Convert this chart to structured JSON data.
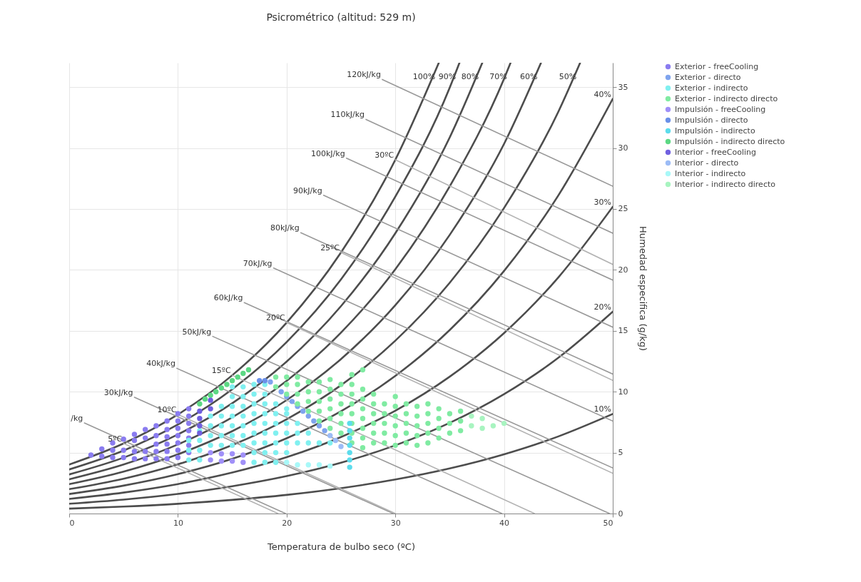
{
  "chart_data": {
    "type": "scatter",
    "title": "Psicrométrico (altitud: 529 m)",
    "xlabel": "Temperatura de bulbo seco (ºC)",
    "ylabel": "Humedad especifica (g/kg)",
    "xlim": [
      0,
      50
    ],
    "ylim": [
      0,
      37
    ],
    "xticks": [
      0,
      10,
      20,
      30,
      40,
      50
    ],
    "yticks": [
      0,
      5,
      10,
      15,
      20,
      25,
      30,
      35
    ],
    "grid": true,
    "legend": "right",
    "line_style": "solid",
    "series": [
      {
        "type": "line",
        "color": "#4d4d4d",
        "x": [
          0,
          5,
          10,
          15,
          20,
          25,
          30,
          35,
          40,
          45,
          50
        ],
        "values": [
          0.4,
          0.57,
          0.8,
          1.12,
          1.53,
          2.08,
          2.79,
          3.7,
          4.86,
          6.33,
          8.17
        ]
      },
      {
        "type": "line",
        "color": "#4d4d4d",
        "x": [
          0,
          5,
          10,
          15,
          20,
          25,
          30,
          35,
          40,
          45,
          50
        ],
        "values": [
          0.8,
          1.14,
          1.61,
          2.24,
          3.07,
          4.17,
          5.6,
          7.44,
          9.8,
          12.79,
          16.57
        ]
      },
      {
        "type": "line",
        "color": "#4d4d4d",
        "x": [
          0,
          5,
          10,
          15,
          20,
          25,
          30,
          35,
          40,
          45,
          50
        ],
        "values": [
          1.2,
          1.72,
          2.42,
          3.36,
          4.62,
          6.28,
          8.44,
          11.23,
          14.81,
          19.39,
          25.18
        ]
      },
      {
        "type": "line",
        "color": "#4d4d4d",
        "x": [
          0,
          5,
          10,
          15,
          20,
          25,
          30,
          35,
          40,
          45,
          50
        ],
        "values": [
          1.6,
          2.29,
          3.23,
          4.49,
          6.18,
          8.4,
          11.3,
          15.06,
          19.91,
          26.12,
          34.04
        ]
      },
      {
        "type": "line",
        "color": "#4d4d4d",
        "x": [
          0,
          5,
          10,
          15,
          20,
          25,
          30,
          35,
          40,
          45,
          47.0
        ],
        "values": [
          2.0,
          2.86,
          4.04,
          5.62,
          7.74,
          10.53,
          14.19,
          18.94,
          25.08,
          32.99,
          37
        ]
      },
      {
        "type": "line",
        "color": "#4d4d4d",
        "x": [
          0,
          5,
          10,
          15,
          20,
          25,
          30,
          35,
          40,
          43.4
        ],
        "values": [
          2.41,
          3.44,
          4.86,
          6.76,
          9.31,
          12.68,
          17.1,
          22.87,
          30.34,
          37
        ]
      },
      {
        "type": "line",
        "color": "#4d4d4d",
        "x": [
          0,
          5,
          10,
          15,
          20,
          25,
          30,
          35,
          40,
          40.6
        ],
        "values": [
          2.81,
          4.02,
          5.67,
          7.9,
          10.89,
          14.85,
          20.05,
          26.85,
          35.69,
          37
        ]
      },
      {
        "type": "line",
        "color": "#4d4d4d",
        "x": [
          0,
          5,
          10,
          15,
          20,
          25,
          30,
          35,
          38.0
        ],
        "values": [
          3.21,
          4.59,
          6.49,
          9.05,
          12.47,
          17.02,
          23.01,
          30.87,
          37
        ]
      },
      {
        "type": "line",
        "color": "#4d4d4d",
        "x": [
          0,
          5,
          10,
          15,
          20,
          25,
          30,
          35,
          35.9
        ],
        "values": [
          3.62,
          5.17,
          7.31,
          10.2,
          14.07,
          19.22,
          26.01,
          34.95,
          37
        ]
      },
      {
        "type": "line",
        "color": "#4d4d4d",
        "x": [
          0,
          5,
          10,
          15,
          20,
          25,
          30,
          34.0
        ],
        "values": [
          4.02,
          5.75,
          8.13,
          11.35,
          15.67,
          21.43,
          29.04,
          37
        ]
      },
      {
        "type": "line",
        "color": "#999999",
        "x": [
          28.8,
          50
        ],
        "values": [
          35.63,
          26.87
        ]
      },
      {
        "type": "line",
        "color": "#999999",
        "x": [
          27.3,
          50
        ],
        "values": [
          32.35,
          23.01
        ]
      },
      {
        "type": "line",
        "color": "#999999",
        "x": [
          25.5,
          50
        ],
        "values": [
          29.17,
          19.16
        ]
      },
      {
        "type": "line",
        "color": "#999999",
        "x": [
          23.4,
          50
        ],
        "values": [
          26.12,
          15.3
        ]
      },
      {
        "type": "line",
        "color": "#999999",
        "x": [
          21.3,
          50
        ],
        "values": [
          23.05,
          11.45
        ]
      },
      {
        "type": "line",
        "color": "#999999",
        "x": [
          18.8,
          50
        ],
        "values": [
          20.15,
          7.59
        ]
      },
      {
        "type": "line",
        "color": "#999999",
        "x": [
          16.1,
          50
        ],
        "values": [
          17.31,
          3.74
        ]
      },
      {
        "type": "line",
        "color": "#999999",
        "x": [
          13.2,
          49.7
        ],
        "values": [
          14.54,
          0
        ]
      },
      {
        "type": "line",
        "color": "#999999",
        "x": [
          9.9,
          39.8
        ],
        "values": [
          11.92,
          0
        ]
      },
      {
        "type": "line",
        "color": "#999999",
        "x": [
          6.0,
          29.8
        ],
        "values": [
          9.54,
          0
        ]
      },
      {
        "type": "line",
        "color": "#999999",
        "x": [
          1.4,
          19.9
        ],
        "values": [
          7.43,
          0
        ]
      },
      {
        "type": "line",
        "color": "#b3b3b3",
        "x": [
          5,
          19.2
        ],
        "values": [
          5.75,
          0
        ]
      },
      {
        "type": "line",
        "color": "#b3b3b3",
        "x": [
          10,
          30.0
        ],
        "values": [
          8.13,
          0
        ]
      },
      {
        "type": "line",
        "color": "#b3b3b3",
        "x": [
          15,
          42.8
        ],
        "values": [
          11.35,
          0
        ]
      },
      {
        "type": "line",
        "color": "#b3b3b3",
        "x": [
          20,
          50
        ],
        "values": [
          15.67,
          3.3
        ]
      },
      {
        "type": "line",
        "color": "#b3b3b3",
        "x": [
          25,
          50
        ],
        "values": [
          21.43,
          10.93
        ]
      },
      {
        "type": "line",
        "color": "#b3b3b3",
        "x": [
          30,
          50
        ],
        "values": [
          29.04,
          20.45
        ]
      },
      {
        "name": "Exterior - freeCooling",
        "color": "#8a7cf0",
        "x": [
          2,
          3,
          3,
          4,
          4,
          4,
          5,
          5,
          5,
          6,
          6,
          6,
          6,
          7,
          7,
          7,
          7,
          8,
          8,
          8,
          8,
          8,
          9,
          9,
          9,
          9,
          9,
          9,
          10,
          10,
          10,
          10,
          10,
          10,
          10,
          11,
          11,
          11,
          11,
          11,
          11,
          11
        ],
        "values": [
          4.8,
          4.7,
          5.3,
          4.6,
          5.2,
          5.8,
          4.6,
          5.2,
          6.1,
          4.5,
          5.1,
          6.0,
          6.5,
          4.5,
          5.1,
          6.2,
          6.9,
          4.5,
          5.1,
          5.7,
          6.4,
          7.2,
          4.5,
          5.1,
          5.7,
          6.3,
          6.9,
          7.6,
          4.6,
          5.2,
          5.8,
          6.4,
          7.0,
          7.6,
          8.2,
          5.0,
          5.6,
          6.2,
          6.8,
          7.4,
          8.0,
          8.6
        ]
      },
      {
        "name": "Exterior - directo",
        "color": "#7fa4ee",
        "x": [
          18.5,
          19.5,
          20.5,
          21.5,
          22.5,
          23.5,
          20,
          21,
          22,
          23
        ],
        "values": [
          10.8,
          10.0,
          9.2,
          8.4,
          7.6,
          6.8,
          9.6,
          8.8,
          8.0,
          7.2
        ]
      },
      {
        "name": "Exterior - indirecto",
        "color": "#80f0f0",
        "x": [
          11,
          11,
          11,
          12,
          12,
          12,
          12,
          13,
          13,
          13,
          13,
          14,
          14,
          14,
          14,
          14,
          15,
          15,
          15,
          15,
          15,
          15,
          15,
          16,
          16,
          16,
          16,
          16,
          16,
          16,
          17,
          17,
          17,
          17,
          17,
          17,
          17,
          17,
          17,
          18,
          18,
          18,
          18,
          18,
          18,
          18,
          18,
          18,
          19,
          19,
          19,
          19,
          19,
          19,
          19,
          20,
          20,
          20,
          20,
          20,
          20,
          21,
          21,
          21,
          22,
          22,
          23,
          24
        ],
        "values": [
          4.4,
          5.2,
          6.0,
          4.4,
          5.2,
          6.0,
          6.8,
          5.6,
          6.4,
          7.2,
          8.0,
          5.6,
          6.4,
          7.2,
          8.0,
          8.8,
          5.6,
          6.4,
          7.2,
          8.0,
          8.8,
          9.6,
          10.4,
          5.6,
          6.4,
          7.2,
          8.0,
          8.8,
          9.6,
          10.4,
          4.2,
          5.0,
          5.8,
          6.6,
          7.4,
          8.2,
          9.0,
          9.8,
          10.6,
          4.2,
          5.0,
          5.8,
          6.6,
          7.4,
          8.2,
          9.0,
          9.8,
          10.6,
          4.2,
          5.0,
          5.8,
          6.6,
          7.4,
          8.2,
          9.0,
          5.0,
          5.8,
          6.6,
          7.4,
          8.2,
          8.6,
          5.8,
          6.6,
          7.4,
          5.8,
          6.6,
          5.8,
          5.8
        ]
      },
      {
        "name": "Exterior - indirecto directo",
        "color": "#80eba2",
        "x": [
          19,
          19,
          20,
          20,
          20,
          21,
          21,
          21,
          21,
          22,
          22,
          22,
          22,
          23,
          23,
          23,
          23,
          23,
          24,
          24,
          24,
          24,
          24,
          24,
          25,
          25,
          25,
          25,
          25,
          25,
          26,
          26,
          26,
          26,
          26,
          26,
          26,
          26,
          27,
          27,
          27,
          27,
          27,
          27,
          27,
          27,
          28,
          28,
          28,
          28,
          28,
          28,
          29,
          29,
          29,
          29,
          29,
          30,
          30,
          30,
          30,
          30,
          30,
          31,
          31,
          31,
          31,
          31,
          32,
          32,
          32,
          32,
          32,
          33,
          33,
          33,
          33,
          33,
          34,
          34,
          34,
          34,
          35,
          35,
          35,
          36,
          36,
          36
        ],
        "values": [
          10.4,
          11.2,
          9.8,
          10.6,
          11.2,
          9.0,
          9.8,
          10.6,
          11.2,
          8.4,
          9.2,
          10.0,
          10.8,
          7.6,
          8.4,
          9.2,
          10.0,
          10.8,
          7.0,
          7.8,
          8.6,
          9.4,
          10.2,
          11.0,
          6.6,
          7.4,
          8.2,
          9.0,
          9.8,
          10.6,
          5.8,
          6.6,
          7.4,
          8.2,
          9.0,
          9.8,
          10.6,
          11.4,
          5.4,
          6.2,
          7.0,
          7.8,
          8.6,
          9.4,
          10.2,
          11.8,
          5.8,
          6.6,
          7.4,
          8.2,
          9.0,
          9.8,
          5.8,
          6.6,
          7.4,
          8.2,
          9.0,
          5.6,
          6.4,
          7.2,
          8.0,
          8.8,
          9.6,
          5.8,
          6.6,
          7.4,
          8.2,
          9.0,
          5.6,
          6.4,
          7.2,
          8.0,
          8.8,
          5.8,
          6.6,
          7.4,
          8.2,
          9.0,
          6.2,
          7.0,
          7.8,
          8.6,
          6.6,
          7.4,
          8.2,
          6.8,
          7.6,
          8.4
        ]
      },
      {
        "name": "Impulsión - freeCooling",
        "color": "#a090f8",
        "x": [
          13,
          13,
          14,
          14,
          15,
          15,
          16,
          16
        ],
        "values": [
          4.4,
          5.0,
          4.3,
          4.9,
          4.3,
          4.9,
          4.2,
          4.8
        ]
      },
      {
        "name": "Impulsión - directo",
        "color": "#6a90e8",
        "x": [
          17.5,
          18
        ],
        "values": [
          10.9,
          10.9
        ]
      },
      {
        "name": "Impulsión - indirecto",
        "color": "#5cdcec",
        "x": [
          25.8,
          25.8,
          25.8,
          25.8,
          25.8,
          25.8,
          25.8
        ],
        "values": [
          3.8,
          4.4,
          5.0,
          5.6,
          6.2,
          6.8,
          7.4
        ]
      },
      {
        "name": "Impulsión - indirecto directo",
        "color": "#5cd884",
        "x": [
          12,
          12.5,
          13,
          13.5,
          14,
          14.5,
          15,
          15.5,
          16,
          16.5
        ],
        "values": [
          9.0,
          9.4,
          9.7,
          10.0,
          10.3,
          10.6,
          10.9,
          11.2,
          11.5,
          11.8
        ]
      },
      {
        "name": "Interior - freeCooling",
        "color": "#7060e0",
        "x": [
          12,
          12,
          12,
          12,
          13,
          13
        ],
        "values": [
          6.6,
          7.2,
          7.8,
          8.4,
          8.6,
          9.3
        ]
      },
      {
        "name": "Interior - directo",
        "color": "#9cbcf6",
        "x": [
          24,
          24.5,
          25
        ],
        "values": [
          6.4,
          6.0,
          5.5
        ]
      },
      {
        "name": "Interior - indirecto",
        "color": "#a8f8f8",
        "x": [
          20,
          21,
          22,
          23,
          24
        ],
        "values": [
          4.2,
          4.0,
          4.0,
          4.0,
          3.9
        ]
      },
      {
        "name": "Interior - indirecto directo",
        "color": "#a8f4c0",
        "x": [
          37,
          37,
          38,
          38,
          39,
          40
        ],
        "values": [
          7.2,
          8.0,
          7.0,
          7.8,
          7.2,
          7.4
        ]
      }
    ],
    "annotations": [
      {
        "text": "120kJ/kg",
        "x": 28.8,
        "y": 35.63
      },
      {
        "text": "110kJ/kg",
        "x": 27.3,
        "y": 32.35
      },
      {
        "text": "100kJ/kg",
        "x": 25.5,
        "y": 29.17
      },
      {
        "text": "90kJ/kg",
        "x": 23.4,
        "y": 26.12
      },
      {
        "text": "80kJ/kg",
        "x": 21.3,
        "y": 23.05
      },
      {
        "text": "70kJ/kg",
        "x": 18.8,
        "y": 20.15
      },
      {
        "text": "60kJ/kg",
        "x": 16.1,
        "y": 17.31
      },
      {
        "text": "50kJ/kg",
        "x": 13.2,
        "y": 14.54
      },
      {
        "text": "40kJ/kg",
        "x": 9.9,
        "y": 11.92
      },
      {
        "text": "30kJ/kg",
        "x": 6.0,
        "y": 9.54
      },
      {
        "text": "/kg",
        "x": 1.4,
        "y": 7.43
      },
      {
        "text": "5ºC",
        "x": 5,
        "y": 5.75
      },
      {
        "text": "10ºC",
        "x": 10,
        "y": 8.13
      },
      {
        "text": "15ºC",
        "x": 15,
        "y": 11.35
      },
      {
        "text": "20ºC",
        "x": 20,
        "y": 15.67
      },
      {
        "text": "25ºC",
        "x": 25,
        "y": 21.43
      },
      {
        "text": "30ºC",
        "x": 30,
        "y": 29.04
      },
      {
        "text": "100%",
        "x": 34.0,
        "y": 37
      },
      {
        "text": "90%",
        "x": 35.9,
        "y": 37
      },
      {
        "text": "80%",
        "x": 38.0,
        "y": 37
      },
      {
        "text": "70%",
        "x": 40.6,
        "y": 37
      },
      {
        "text": "60%",
        "x": 43.4,
        "y": 37
      },
      {
        "text": "50%",
        "x": 47.0,
        "y": 37
      },
      {
        "text": "40%",
        "x": 50,
        "y": 34.04
      },
      {
        "text": "30%",
        "x": 50,
        "y": 25.18
      },
      {
        "text": "20%",
        "x": 50,
        "y": 16.57
      },
      {
        "text": "10%",
        "x": 50,
        "y": 8.17
      }
    ]
  }
}
